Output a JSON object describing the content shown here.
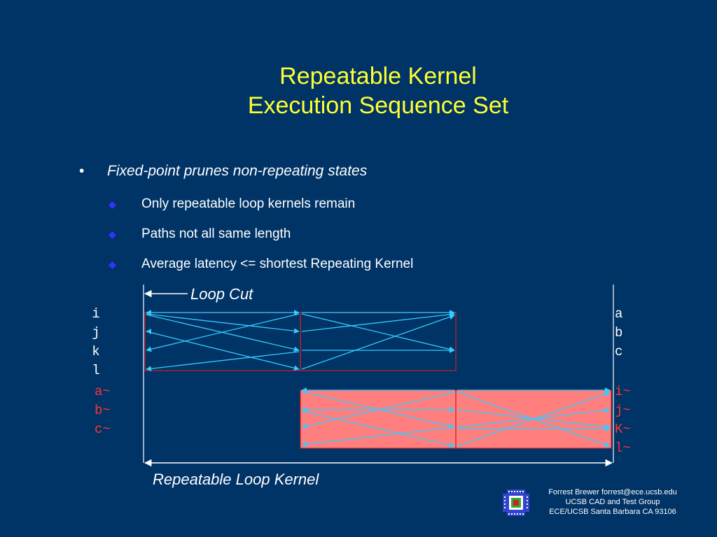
{
  "slide": {
    "title_line1": "Repeatable Kernel",
    "title_line2": "Execution Sequence Set"
  },
  "bullets": {
    "main": {
      "marker": "•",
      "text": "Fixed-point prunes non-repeating states"
    },
    "sub": [
      {
        "marker": "◆",
        "text": "Only repeatable loop kernels remain"
      },
      {
        "marker": "◆",
        "text": "Paths not all same length"
      },
      {
        "marker": "◆",
        "text": "Average latency <= shortest Repeating Kernel"
      }
    ]
  },
  "diagram": {
    "loop_cut_label": "Loop Cut",
    "repeatable_kernel_label": "Repeatable Loop Kernel",
    "left_states": [
      "i",
      "j",
      "k",
      "l"
    ],
    "left_tilde_states": [
      "a~",
      "b~",
      "c~"
    ],
    "right_states": [
      "a",
      "b",
      "c"
    ],
    "right_tilde_states": [
      "i~",
      "j~",
      "K~",
      "l~"
    ],
    "colors": {
      "arrow": "#33ccff",
      "box_fill": "#ff7f7f",
      "box_edge": "#cc2222",
      "tilde_text": "#ff3333",
      "text": "#ffffff",
      "title": "#ffff33"
    }
  },
  "footer": {
    "line1": "Forrest Brewer  forrest@ece.ucsb.edu",
    "line2": "UCSB CAD and Test Group",
    "line3": "ECE/UCSB Santa Barbara CA 93106"
  }
}
